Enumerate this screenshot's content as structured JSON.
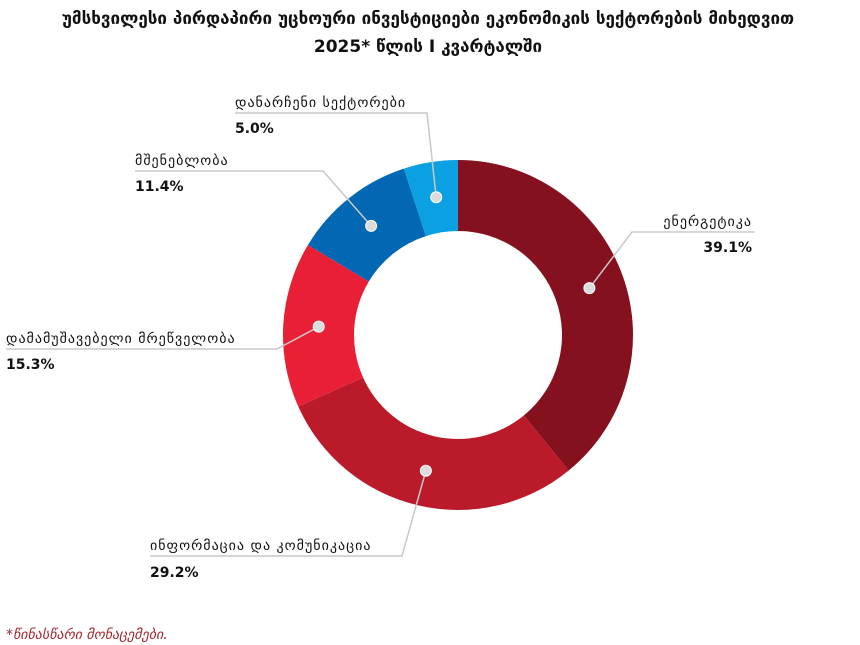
{
  "chart_data": {
    "type": "pie",
    "donut": true,
    "title": "უმსხვილესი პირდაპირი უცხოური ინვესტიციები ეკონომიკის სექტორების მიხედვით",
    "subtitle": "2025* წლის I კვარტალში",
    "unit": "%",
    "slices": [
      {
        "label": "ენერგეტიკა",
        "value": 39.1,
        "value_label": "39.1%",
        "color": "#85111f"
      },
      {
        "label": "ინფორმაცია და კომუნიკაცია",
        "value": 29.2,
        "value_label": "29.2%",
        "color": "#bb1a2a"
      },
      {
        "label": "დამამუშავებელი მრეწველობა",
        "value": 15.3,
        "value_label": "15.3%",
        "color": "#e81f35"
      },
      {
        "label": "მშენებლობა",
        "value": 11.4,
        "value_label": "11.4%",
        "color": "#0268b3"
      },
      {
        "label": "დანარჩენი სექტორები",
        "value": 5.0,
        "value_label": "5.0%",
        "color": "#0aa0e2"
      }
    ]
  },
  "footnote": "*წინასწარი მონაცემები."
}
